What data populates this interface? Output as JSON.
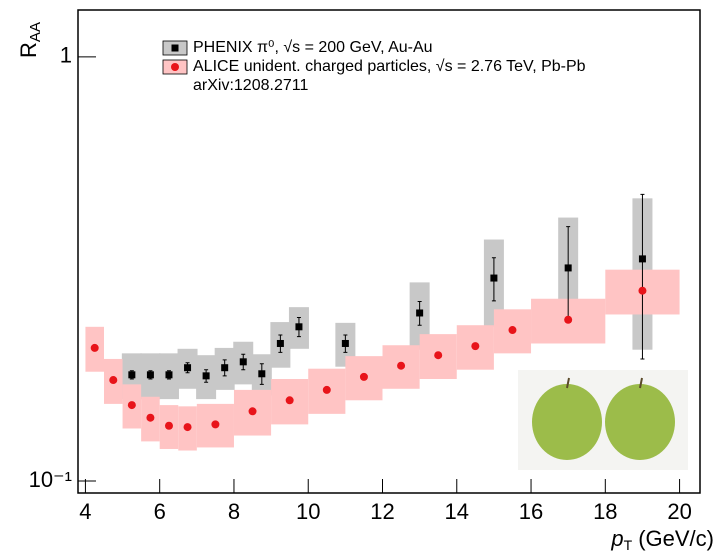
{
  "chart_data": {
    "type": "scatter",
    "xlabel": {
      "var": "p",
      "sub": "T",
      "unit": "(GeV/c)"
    },
    "ylabel": {
      "main": "R",
      "sub": "AA"
    },
    "annotation": "arXiv:1208.2711",
    "log_y": true,
    "xlim": [
      3.8,
      20.55
    ],
    "ylim": [
      0.0937,
      1.29
    ],
    "xticks": [
      4,
      6,
      8,
      10,
      12,
      14,
      16,
      18,
      20
    ],
    "yticks": [
      {
        "value": 0.1,
        "label": "10⁻¹"
      },
      1
    ],
    "series": [
      {
        "name": "PHENIX π⁰, √s = 200 GeV, Au-Au",
        "color": "#000000",
        "box_color": "#c8c8c8",
        "x": [
          5.25,
          5.75,
          6.25,
          6.75,
          7.25,
          7.75,
          8.25,
          8.75,
          9.25,
          9.75,
          11,
          13,
          15,
          17,
          19
        ],
        "values": [
          0.178,
          0.178,
          0.178,
          0.185,
          0.177,
          0.185,
          0.191,
          0.179,
          0.211,
          0.231,
          0.211,
          0.249,
          0.301,
          0.318,
          0.334
        ],
        "stat_err": [
          0.004,
          0.004,
          0.004,
          0.005,
          0.006,
          0.008,
          0.008,
          0.01,
          0.01,
          0.012,
          0.01,
          0.016,
          0.035,
          0.08,
          0.14
        ],
        "sys_err": [
          0.022,
          0.022,
          0.022,
          0.02,
          0.021,
          0.021,
          0.022,
          0.02,
          0.026,
          0.026,
          0.025,
          0.045,
          0.07,
          0.1,
          0.13
        ]
      },
      {
        "name": "ALICE unident. charged particles, √s = 2.76 TeV, Pb-Pb",
        "color": "#e8141a",
        "box_color": "#ffc4c4",
        "x": [
          4.25,
          4.75,
          5.25,
          5.75,
          6.25,
          6.75,
          7.5,
          8.5,
          9.5,
          10.5,
          11.5,
          12.5,
          13.5,
          14.5,
          15.5,
          17,
          19
        ],
        "bin_edges": [
          4,
          4.5,
          5,
          5.5,
          6,
          6.5,
          7,
          8,
          9,
          10,
          11,
          12,
          13,
          14,
          15,
          16,
          18,
          20
        ],
        "values": [
          0.206,
          0.173,
          0.151,
          0.141,
          0.135,
          0.134,
          0.136,
          0.146,
          0.155,
          0.164,
          0.176,
          0.187,
          0.198,
          0.208,
          0.227,
          0.24,
          0.281
        ],
        "sys_err": [
          0.025,
          0.021,
          0.018,
          0.017,
          0.016,
          0.016,
          0.016,
          0.018,
          0.019,
          0.02,
          0.021,
          0.022,
          0.024,
          0.025,
          0.027,
          0.029,
          0.034
        ]
      }
    ]
  }
}
